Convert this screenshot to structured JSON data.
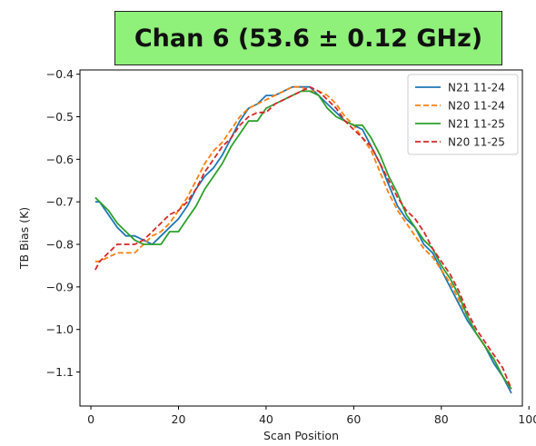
{
  "chart_data": {
    "type": "line",
    "title": "Chan 6 (53.6 ± 0.12 GHz)",
    "xlabel": "Scan Position",
    "ylabel": "TB Bias (K)",
    "xlim": [
      -2.5,
      98.5
    ],
    "ylim": [
      -1.18,
      -0.39
    ],
    "xticks": [
      0,
      20,
      40,
      60,
      80,
      100
    ],
    "xtick_labels": [
      "0",
      "20",
      "40",
      "60",
      "80",
      "100"
    ],
    "yticks": [
      -0.4,
      -0.5,
      -0.6,
      -0.7,
      -0.8,
      -0.9,
      -1.0,
      -1.1
    ],
    "ytick_labels": [
      "−0.4",
      "−0.5",
      "−0.6",
      "−0.7",
      "−0.8",
      "−0.9",
      "−1.0",
      "−1.1"
    ],
    "grid": false,
    "legend_position": "top-right",
    "series": [
      {
        "name": "N21 11-24",
        "color": "#1f77b4",
        "dash": "solid",
        "x": [
          1,
          2,
          4,
          6,
          8,
          10,
          12,
          14,
          16,
          18,
          20,
          22,
          24,
          26,
          28,
          30,
          32,
          34,
          36,
          38,
          40,
          42,
          44,
          46,
          48,
          50,
          52,
          54,
          56,
          58,
          60,
          62,
          64,
          66,
          68,
          70,
          72,
          74,
          76,
          78,
          80,
          82,
          84,
          86,
          88,
          90,
          92,
          94,
          96
        ],
        "y": [
          -0.7,
          -0.7,
          -0.73,
          -0.76,
          -0.78,
          -0.78,
          -0.79,
          -0.8,
          -0.78,
          -0.76,
          -0.74,
          -0.71,
          -0.67,
          -0.64,
          -0.62,
          -0.59,
          -0.55,
          -0.51,
          -0.48,
          -0.47,
          -0.45,
          -0.45,
          -0.44,
          -0.43,
          -0.43,
          -0.43,
          -0.45,
          -0.47,
          -0.49,
          -0.51,
          -0.52,
          -0.53,
          -0.57,
          -0.61,
          -0.66,
          -0.71,
          -0.74,
          -0.76,
          -0.8,
          -0.82,
          -0.86,
          -0.9,
          -0.94,
          -0.98,
          -1.01,
          -1.04,
          -1.08,
          -1.11,
          -1.15
        ]
      },
      {
        "name": "N20 11-24",
        "color": "#ff7f0e",
        "dash": "dashed",
        "x": [
          1,
          2,
          4,
          6,
          8,
          10,
          12,
          14,
          16,
          18,
          20,
          22,
          24,
          26,
          28,
          30,
          32,
          34,
          36,
          38,
          40,
          42,
          44,
          46,
          48,
          50,
          52,
          54,
          56,
          58,
          60,
          62,
          64,
          66,
          68,
          70,
          72,
          74,
          76,
          78,
          80,
          82,
          84,
          86,
          88,
          90,
          92,
          94,
          96
        ],
        "y": [
          -0.84,
          -0.84,
          -0.83,
          -0.82,
          -0.82,
          -0.82,
          -0.8,
          -0.78,
          -0.77,
          -0.75,
          -0.72,
          -0.69,
          -0.65,
          -0.61,
          -0.58,
          -0.56,
          -0.53,
          -0.5,
          -0.48,
          -0.47,
          -0.46,
          -0.45,
          -0.44,
          -0.43,
          -0.43,
          -0.44,
          -0.44,
          -0.45,
          -0.47,
          -0.5,
          -0.52,
          -0.55,
          -0.58,
          -0.63,
          -0.68,
          -0.72,
          -0.75,
          -0.78,
          -0.81,
          -0.83,
          -0.86,
          -0.89,
          -0.93,
          -0.97,
          -1.01,
          -1.04,
          -1.07,
          -1.11,
          -1.14
        ]
      },
      {
        "name": "N21 11-25",
        "color": "#2ca02c",
        "dash": "solid",
        "x": [
          1,
          2,
          4,
          6,
          8,
          10,
          12,
          14,
          16,
          18,
          20,
          22,
          24,
          26,
          28,
          30,
          32,
          34,
          36,
          38,
          40,
          42,
          44,
          46,
          48,
          50,
          52,
          54,
          56,
          58,
          60,
          62,
          64,
          66,
          68,
          70,
          72,
          74,
          76,
          78,
          80,
          82,
          84,
          86,
          88,
          90,
          92,
          94,
          96
        ],
        "y": [
          -0.69,
          -0.7,
          -0.72,
          -0.75,
          -0.77,
          -0.79,
          -0.8,
          -0.8,
          -0.8,
          -0.77,
          -0.77,
          -0.74,
          -0.71,
          -0.67,
          -0.64,
          -0.61,
          -0.57,
          -0.54,
          -0.51,
          -0.51,
          -0.48,
          -0.47,
          -0.46,
          -0.45,
          -0.44,
          -0.44,
          -0.45,
          -0.48,
          -0.5,
          -0.51,
          -0.52,
          -0.52,
          -0.55,
          -0.59,
          -0.64,
          -0.68,
          -0.73,
          -0.76,
          -0.79,
          -0.81,
          -0.85,
          -0.88,
          -0.92,
          -0.97,
          -1.01,
          -1.04,
          -1.07,
          -1.11,
          -1.14
        ]
      },
      {
        "name": "N20 11-25",
        "color": "#d62728",
        "dash": "dashed",
        "x": [
          1,
          2,
          4,
          6,
          8,
          10,
          12,
          14,
          16,
          18,
          20,
          22,
          24,
          26,
          28,
          30,
          32,
          34,
          36,
          38,
          40,
          42,
          44,
          46,
          48,
          50,
          52,
          54,
          56,
          58,
          60,
          62,
          64,
          66,
          68,
          70,
          72,
          74,
          76,
          78,
          80,
          82,
          84,
          86,
          88,
          90,
          92,
          94,
          96
        ],
        "y": [
          -0.86,
          -0.84,
          -0.82,
          -0.8,
          -0.8,
          -0.8,
          -0.79,
          -0.77,
          -0.75,
          -0.73,
          -0.72,
          -0.7,
          -0.67,
          -0.63,
          -0.6,
          -0.57,
          -0.55,
          -0.52,
          -0.5,
          -0.49,
          -0.49,
          -0.47,
          -0.46,
          -0.45,
          -0.44,
          -0.43,
          -0.44,
          -0.46,
          -0.48,
          -0.51,
          -0.53,
          -0.55,
          -0.57,
          -0.61,
          -0.65,
          -0.69,
          -0.72,
          -0.74,
          -0.77,
          -0.81,
          -0.84,
          -0.87,
          -0.91,
          -0.96,
          -1.0,
          -1.03,
          -1.06,
          -1.09,
          -1.14
        ]
      }
    ]
  }
}
